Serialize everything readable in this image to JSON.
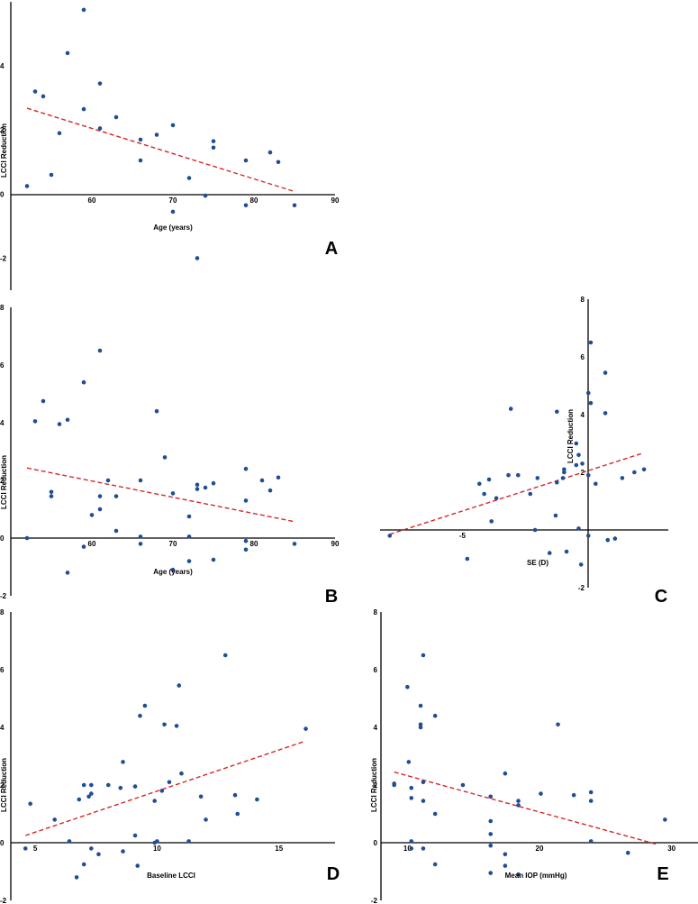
{
  "chart_data": [
    {
      "panel": "A",
      "type": "scatter",
      "title": "",
      "xlabel": "Age (years)",
      "ylabel": "LCCI Reduction",
      "panel_label": "A",
      "xlim": [
        50,
        90
      ],
      "ylim": [
        -3,
        6
      ],
      "xticks": [
        60,
        70,
        80,
        90
      ],
      "yticks": [
        -2,
        0,
        2,
        4
      ],
      "points": [
        {
          "x": 52,
          "y": 0.25
        },
        {
          "x": 53,
          "y": 3.2
        },
        {
          "x": 54,
          "y": 3.05
        },
        {
          "x": 55,
          "y": 0.6
        },
        {
          "x": 56,
          "y": 1.9
        },
        {
          "x": 57,
          "y": 4.4
        },
        {
          "x": 59,
          "y": 5.75
        },
        {
          "x": 59,
          "y": 2.65
        },
        {
          "x": 61,
          "y": 3.45
        },
        {
          "x": 61,
          "y": 2.05
        },
        {
          "x": 63,
          "y": 2.4
        },
        {
          "x": 66,
          "y": 1.05
        },
        {
          "x": 66,
          "y": 1.7
        },
        {
          "x": 68,
          "y": 1.85
        },
        {
          "x": 70,
          "y": 2.15
        },
        {
          "x": 70,
          "y": -0.55
        },
        {
          "x": 72,
          "y": 0.5
        },
        {
          "x": 73,
          "y": -2.0
        },
        {
          "x": 74,
          "y": -0.05
        },
        {
          "x": 75,
          "y": 1.65
        },
        {
          "x": 75,
          "y": 1.45
        },
        {
          "x": 79,
          "y": -0.35
        },
        {
          "x": 79,
          "y": 1.05
        },
        {
          "x": 82,
          "y": 1.3
        },
        {
          "x": 83,
          "y": 1.0
        },
        {
          "x": 85,
          "y": -0.35
        }
      ],
      "trendline": {
        "x": [
          52,
          85
        ],
        "y": [
          2.68,
          0.08
        ]
      }
    },
    {
      "panel": "B",
      "type": "scatter",
      "title": "",
      "xlabel": "Age (years)",
      "ylabel": "LCCI Reduction",
      "panel_label": "B",
      "xlim": [
        50,
        90
      ],
      "ylim": [
        -2,
        8
      ],
      "xticks": [
        60,
        70,
        80,
        90
      ],
      "yticks": [
        -2,
        0,
        2,
        4,
        6,
        8
      ],
      "points": [
        {
          "x": 52,
          "y": 0.0
        },
        {
          "x": 53,
          "y": 4.05
        },
        {
          "x": 54,
          "y": 4.75
        },
        {
          "x": 55,
          "y": 1.6
        },
        {
          "x": 55,
          "y": 1.45
        },
        {
          "x": 56,
          "y": 3.95
        },
        {
          "x": 57,
          "y": 4.1
        },
        {
          "x": 57,
          "y": -1.2
        },
        {
          "x": 59,
          "y": 5.4
        },
        {
          "x": 59,
          "y": -0.3
        },
        {
          "x": 60,
          "y": 0.8
        },
        {
          "x": 61,
          "y": 6.5
        },
        {
          "x": 61,
          "y": 1.45
        },
        {
          "x": 61,
          "y": 1.0
        },
        {
          "x": 62,
          "y": 2.0
        },
        {
          "x": 63,
          "y": 1.45
        },
        {
          "x": 63,
          "y": 0.25
        },
        {
          "x": 66,
          "y": 2.0
        },
        {
          "x": 66,
          "y": 0.05
        },
        {
          "x": 66,
          "y": -0.2
        },
        {
          "x": 68,
          "y": 4.4
        },
        {
          "x": 69,
          "y": 2.8
        },
        {
          "x": 70,
          "y": 1.55
        },
        {
          "x": 70,
          "y": -1.1
        },
        {
          "x": 72,
          "y": 0.75
        },
        {
          "x": 72,
          "y": 0.05
        },
        {
          "x": 72,
          "y": -0.8
        },
        {
          "x": 73,
          "y": 1.85
        },
        {
          "x": 73,
          "y": 1.7
        },
        {
          "x": 74,
          "y": 1.75
        },
        {
          "x": 75,
          "y": 1.9
        },
        {
          "x": 75,
          "y": -0.75
        },
        {
          "x": 79,
          "y": 2.4
        },
        {
          "x": 79,
          "y": 1.3
        },
        {
          "x": 79,
          "y": -0.1
        },
        {
          "x": 79,
          "y": -0.4
        },
        {
          "x": 81,
          "y": 2.0
        },
        {
          "x": 82,
          "y": 1.65
        },
        {
          "x": 83,
          "y": 2.1
        },
        {
          "x": 85,
          "y": -0.2
        }
      ],
      "trendline": {
        "x": [
          52,
          85
        ],
        "y": [
          2.43,
          0.57
        ]
      }
    },
    {
      "panel": "C",
      "type": "scatter",
      "title": "",
      "xlabel": "SE (D)",
      "ylabel": "LCCI Reduction",
      "panel_label": "C",
      "xlim": [
        -8.4,
        3.5
      ],
      "ylim": [
        -2,
        8
      ],
      "xticks": [
        -5
      ],
      "yticks": [
        -2,
        2,
        4,
        6,
        8
      ],
      "points": [
        {
          "x": -8.0,
          "y": -0.2
        },
        {
          "x": -4.8,
          "y": -1.0
        },
        {
          "x": -4.3,
          "y": 1.6
        },
        {
          "x": -4.1,
          "y": 1.25
        },
        {
          "x": -3.9,
          "y": 1.75
        },
        {
          "x": -3.6,
          "y": 1.1
        },
        {
          "x": -3.8,
          "y": 0.3
        },
        {
          "x": -3.1,
          "y": 1.9
        },
        {
          "x": -3.0,
          "y": 4.2
        },
        {
          "x": -2.7,
          "y": 1.9
        },
        {
          "x": -2.2,
          "y": 1.25
        },
        {
          "x": -2.0,
          "y": 0.0
        },
        {
          "x": -1.9,
          "y": 1.8
        },
        {
          "x": -1.4,
          "y": -0.8
        },
        {
          "x": -1.1,
          "y": 4.1
        },
        {
          "x": -1.1,
          "y": 1.65
        },
        {
          "x": -1.15,
          "y": 0.5
        },
        {
          "x": -0.8,
          "y": 2.1
        },
        {
          "x": -0.8,
          "y": 2.0
        },
        {
          "x": -0.85,
          "y": 1.8
        },
        {
          "x": -0.7,
          "y": -0.75
        },
        {
          "x": -0.3,
          "y": 3.0
        },
        {
          "x": -0.2,
          "y": 2.6
        },
        {
          "x": -0.3,
          "y": 2.25
        },
        {
          "x": -0.05,
          "y": 2.3
        },
        {
          "x": -0.2,
          "y": 0.05
        },
        {
          "x": -0.1,
          "y": -1.2
        },
        {
          "x": 0.2,
          "y": 4.75
        },
        {
          "x": 0.3,
          "y": 4.4
        },
        {
          "x": 0.3,
          "y": 6.5
        },
        {
          "x": 0.2,
          "y": 1.9
        },
        {
          "x": 0.2,
          "y": -0.2
        },
        {
          "x": 0.5,
          "y": 1.6
        },
        {
          "x": 0.9,
          "y": 5.45
        },
        {
          "x": 0.9,
          "y": 4.05
        },
        {
          "x": 1.0,
          "y": -0.35
        },
        {
          "x": 1.3,
          "y": -0.3
        },
        {
          "x": 1.6,
          "y": 1.8
        },
        {
          "x": 2.1,
          "y": 2.0
        },
        {
          "x": 2.5,
          "y": 2.1
        }
      ],
      "trendline": {
        "x": [
          -8.0,
          2.4
        ],
        "y": [
          -0.15,
          2.65
        ]
      }
    },
    {
      "panel": "D",
      "type": "scatter",
      "title": "",
      "xlabel": "Baseline LCCI",
      "ylabel": "LCCI Reduction",
      "panel_label": "D",
      "xlim": [
        4,
        17.3
      ],
      "ylim": [
        -2,
        8
      ],
      "xticks": [
        5,
        10,
        15
      ],
      "yticks": [
        -2,
        0,
        2,
        4,
        6,
        8
      ],
      "points": [
        {
          "x": 4.6,
          "y": -0.2
        },
        {
          "x": 4.8,
          "y": 1.35
        },
        {
          "x": 5.8,
          "y": 0.8
        },
        {
          "x": 6.4,
          "y": 0.05
        },
        {
          "x": 6.7,
          "y": -1.2
        },
        {
          "x": 6.8,
          "y": 1.5
        },
        {
          "x": 7.0,
          "y": 2.0
        },
        {
          "x": 7.0,
          "y": -0.75
        },
        {
          "x": 7.2,
          "y": 1.6
        },
        {
          "x": 7.3,
          "y": 2.0
        },
        {
          "x": 7.3,
          "y": 1.7
        },
        {
          "x": 7.3,
          "y": -0.2
        },
        {
          "x": 7.6,
          "y": -0.4
        },
        {
          "x": 8.0,
          "y": 2.0
        },
        {
          "x": 8.5,
          "y": 1.9
        },
        {
          "x": 8.6,
          "y": 2.8
        },
        {
          "x": 8.6,
          "y": -0.3
        },
        {
          "x": 9.1,
          "y": 1.95
        },
        {
          "x": 9.1,
          "y": 0.25
        },
        {
          "x": 9.2,
          "y": -0.8
        },
        {
          "x": 9.3,
          "y": 4.4
        },
        {
          "x": 9.5,
          "y": 4.75
        },
        {
          "x": 9.9,
          "y": 1.45
        },
        {
          "x": 9.9,
          "y": 0.0
        },
        {
          "x": 10.0,
          "y": 0.05
        },
        {
          "x": 10.2,
          "y": 1.8
        },
        {
          "x": 10.3,
          "y": 4.1
        },
        {
          "x": 10.5,
          "y": 2.1
        },
        {
          "x": 10.8,
          "y": 4.05
        },
        {
          "x": 10.9,
          "y": 5.45
        },
        {
          "x": 11.0,
          "y": 2.4
        },
        {
          "x": 11.3,
          "y": 0.05
        },
        {
          "x": 11.8,
          "y": 1.6
        },
        {
          "x": 12.0,
          "y": 0.8
        },
        {
          "x": 12.8,
          "y": 6.5
        },
        {
          "x": 13.2,
          "y": 1.65
        },
        {
          "x": 13.3,
          "y": 1.0
        },
        {
          "x": 14.1,
          "y": 1.5
        },
        {
          "x": 16.1,
          "y": 3.95
        }
      ],
      "trendline": {
        "x": [
          4.6,
          16.0
        ],
        "y": [
          0.25,
          3.5
        ]
      }
    },
    {
      "panel": "E",
      "type": "scatter",
      "title": "",
      "xlabel": "Mean IOP (mmHg)",
      "ylabel": "LCCI Reduction",
      "panel_label": "E",
      "xlim": [
        8,
        32
      ],
      "ylim": [
        -2,
        8
      ],
      "xticks": [
        10,
        20,
        30
      ],
      "yticks": [
        -2,
        0,
        2,
        4,
        6,
        8
      ],
      "points": [
        {
          "x": 9.0,
          "y": 2.0
        },
        {
          "x": 9.0,
          "y": 2.05
        },
        {
          "x": 10.0,
          "y": 5.4
        },
        {
          "x": 10.1,
          "y": 2.8
        },
        {
          "x": 10.3,
          "y": 1.9
        },
        {
          "x": 10.3,
          "y": 1.55
        },
        {
          "x": 10.3,
          "y": 0.05
        },
        {
          "x": 10.3,
          "y": -0.2
        },
        {
          "x": 11.0,
          "y": 4.75
        },
        {
          "x": 11.0,
          "y": 4.1
        },
        {
          "x": 11.0,
          "y": 4.0
        },
        {
          "x": 11.2,
          "y": 6.5
        },
        {
          "x": 11.2,
          "y": 2.1
        },
        {
          "x": 11.2,
          "y": 1.45
        },
        {
          "x": 11.2,
          "y": -0.2
        },
        {
          "x": 12.1,
          "y": 4.4
        },
        {
          "x": 12.1,
          "y": 1.0
        },
        {
          "x": 12.1,
          "y": -0.75
        },
        {
          "x": 14.2,
          "y": 2.0
        },
        {
          "x": 16.3,
          "y": 1.6
        },
        {
          "x": 16.3,
          "y": 0.75
        },
        {
          "x": 16.3,
          "y": 0.3
        },
        {
          "x": 16.3,
          "y": -0.1
        },
        {
          "x": 16.3,
          "y": -1.05
        },
        {
          "x": 17.4,
          "y": 2.4
        },
        {
          "x": 17.4,
          "y": -0.4
        },
        {
          "x": 17.4,
          "y": -0.8
        },
        {
          "x": 18.4,
          "y": 1.45
        },
        {
          "x": 18.4,
          "y": 1.3
        },
        {
          "x": 18.4,
          "y": -1.1
        },
        {
          "x": 20.1,
          "y": 1.7
        },
        {
          "x": 21.4,
          "y": 4.1
        },
        {
          "x": 22.6,
          "y": 1.65
        },
        {
          "x": 23.9,
          "y": 1.75
        },
        {
          "x": 23.9,
          "y": 1.45
        },
        {
          "x": 23.9,
          "y": 0.05
        },
        {
          "x": 26.7,
          "y": -0.35
        },
        {
          "x": 29.5,
          "y": 0.8
        }
      ],
      "trendline": {
        "x": [
          9.0,
          29.0
        ],
        "y": [
          2.45,
          -0.07
        ]
      }
    }
  ]
}
